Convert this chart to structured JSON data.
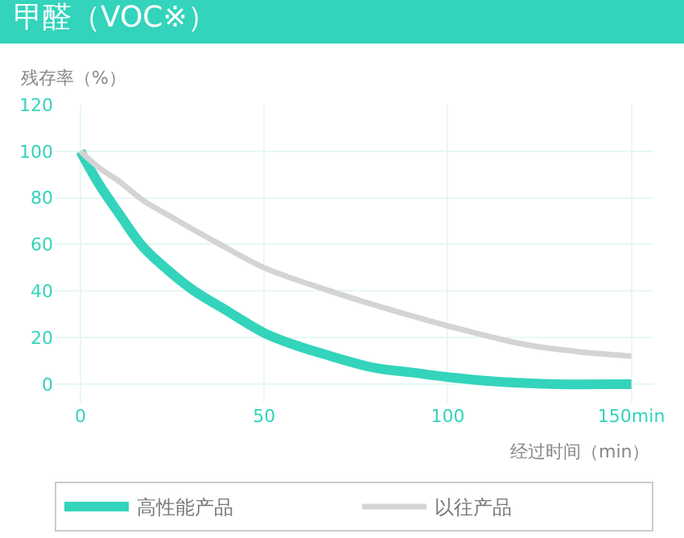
{
  "chart_data": {
    "type": "line",
    "title": "甲醛（VOC※）",
    "ylabel": "残存率（%）",
    "xlabel": "经过时间（min）",
    "series": [
      {
        "name": "高性能产品",
        "color": "#33d4bb",
        "x": [
          0,
          5,
          10.6,
          17,
          24.5,
          31,
          38.3,
          50,
          58,
          66,
          80,
          90,
          100,
          114,
          130,
          150
        ],
        "values": [
          100,
          86,
          73,
          59,
          48,
          40,
          33,
          22,
          17,
          13,
          7,
          5,
          3,
          1,
          0,
          0
        ]
      },
      {
        "name": "以往产品",
        "color": "#d4d4d4",
        "x": [
          0,
          5,
          10.6,
          17,
          24.5,
          38,
          50,
          66,
          80,
          100,
          121,
          135,
          150
        ],
        "values": [
          100,
          93,
          87,
          79,
          72,
          60,
          50,
          41,
          34,
          25,
          17,
          14,
          12
        ]
      }
    ],
    "xlim": [
      -7,
      156
    ],
    "ylim": [
      -8,
      120
    ],
    "xticks": [
      0,
      50,
      100,
      {
        "value": 150,
        "label": "150min"
      }
    ],
    "yticks": [
      0,
      20,
      40,
      60,
      80,
      100,
      120
    ],
    "grid": true,
    "legend": "bottom",
    "marker": "none",
    "line_style": "solid"
  }
}
